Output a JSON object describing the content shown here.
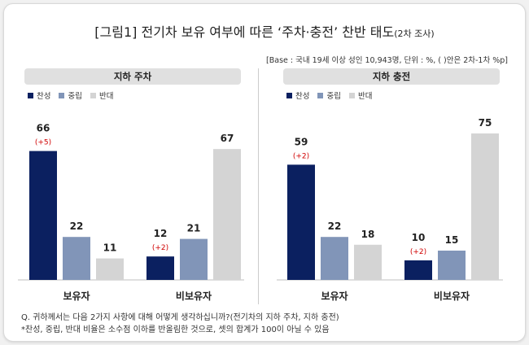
{
  "title": {
    "main": "[그림1] 전기차 보유 여부에 따른 ‘주차·충전’ 찬반 태도",
    "sub": "(2차 조사)"
  },
  "base_note": "[Base : 국내 19세 이상 성인 10,943명, 단위 : %, ( )안은 2차-1차 %p]",
  "colors": {
    "찬성": "#0b2060",
    "중립": "#8195b8",
    "반대": "#d4d4d4",
    "change": "#d00000"
  },
  "legend": [
    "찬성",
    "중립",
    "반대"
  ],
  "chart_data": [
    {
      "type": "bar",
      "title": "지하 주차",
      "categories": [
        "보유자",
        "비보유자"
      ],
      "series": [
        {
          "name": "찬성",
          "values": [
            66,
            12
          ],
          "changes": [
            "(+5)",
            "(+2)"
          ]
        },
        {
          "name": "중립",
          "values": [
            22,
            21
          ]
        },
        {
          "name": "반대",
          "values": [
            11,
            67
          ]
        }
      ]
    },
    {
      "type": "bar",
      "title": "지하 충전",
      "categories": [
        "보유자",
        "비보유자"
      ],
      "series": [
        {
          "name": "찬성",
          "values": [
            59,
            10
          ],
          "changes": [
            "(+2)",
            "(+2)"
          ]
        },
        {
          "name": "중립",
          "values": [
            22,
            15
          ]
        },
        {
          "name": "반대",
          "values": [
            18,
            75
          ]
        }
      ]
    }
  ],
  "footnotes": [
    "Q. 귀하께서는 다음 2가지 사항에 대해 어떻게 생각하십니까?(전기차의 지하 주차, 지하 충전)",
    "*찬성, 중립, 반대 비율은 소수점 이하를 반올림한 것으로, 셋의 합계가 100이 아닐 수 있음"
  ]
}
